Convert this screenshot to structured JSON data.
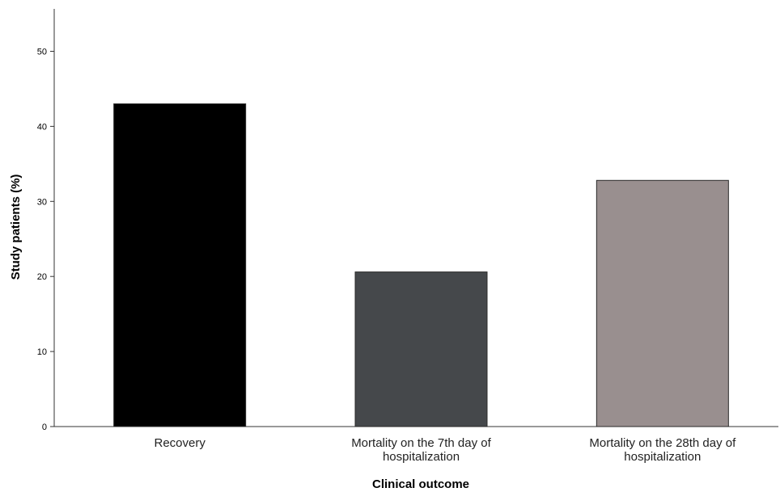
{
  "chart_data": {
    "type": "bar",
    "title": "",
    "xlabel": "Clinical outcome",
    "ylabel": "Study patients (%)",
    "ylim": [
      0,
      55
    ],
    "yticks": [
      0,
      10,
      20,
      30,
      40,
      50
    ],
    "grid": false,
    "categories": [
      [
        "Recovery"
      ],
      [
        "Mortality on the 7th day of",
        "hospitalization"
      ],
      [
        "Mortality on the 28th day of",
        "hospitalization"
      ]
    ],
    "values": [
      43,
      20.6,
      32.8
    ],
    "colors": [
      "#000000",
      "#45484b",
      "#998f8f"
    ]
  }
}
